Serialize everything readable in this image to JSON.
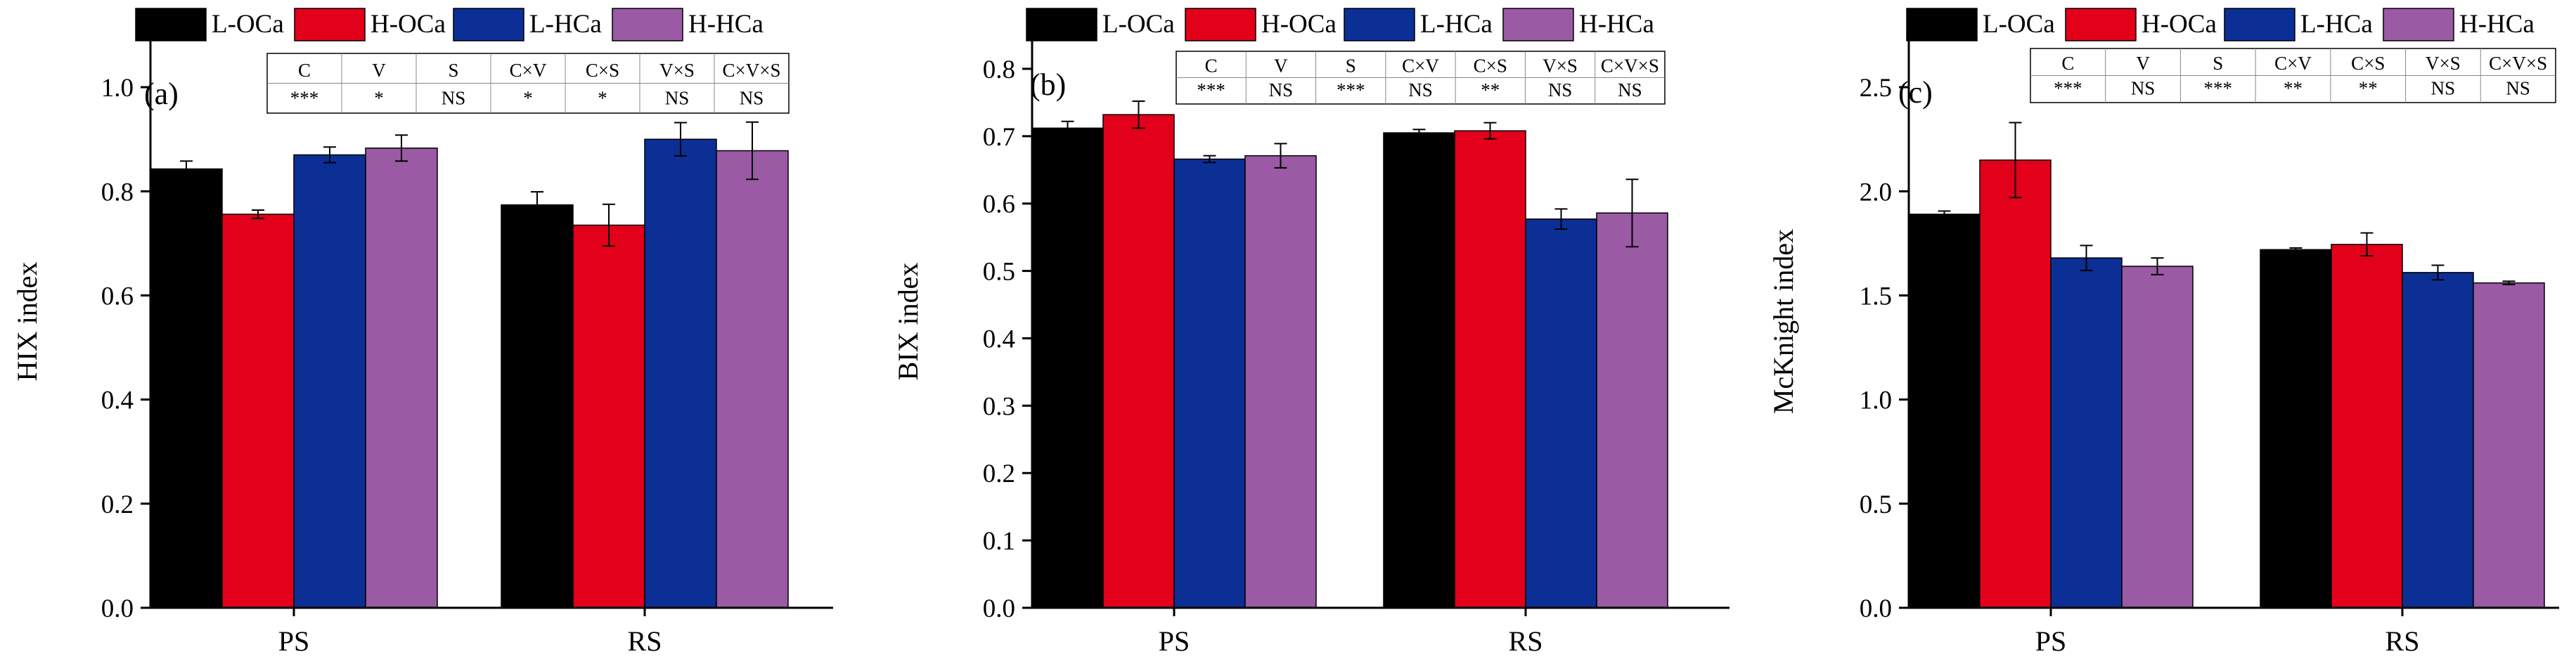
{
  "legend_labels": [
    "L-OCa",
    "H-OCa",
    "L-HCa",
    "H-HCa"
  ],
  "colors": [
    "#000000",
    "#e3001a",
    "#0c2f96",
    "#9a5aa4"
  ],
  "chart_data": [
    {
      "type": "bar",
      "panel_label": "(a)",
      "ylabel": "HIX index",
      "categories": [
        "PS",
        "RS"
      ],
      "ylim": [
        0,
        1.1
      ],
      "yticks": [
        "0.0",
        "0.2",
        "0.4",
        "0.6",
        "0.8",
        "1.0"
      ],
      "ytick_values": [
        0,
        0.2,
        0.4,
        0.6,
        0.8,
        1.0
      ],
      "series": [
        {
          "name": "L-OCa",
          "values": [
            0.843,
            0.774
          ],
          "errors": [
            0.015,
            0.025
          ]
        },
        {
          "name": "H-OCa",
          "values": [
            0.756,
            0.735
          ],
          "errors": [
            0.008,
            0.04
          ]
        },
        {
          "name": "L-HCa",
          "values": [
            0.87,
            0.9
          ],
          "errors": [
            0.015,
            0.032
          ]
        },
        {
          "name": "H-HCa",
          "values": [
            0.883,
            0.878
          ],
          "errors": [
            0.025,
            0.055
          ]
        }
      ],
      "stats_table": {
        "headers": [
          "C",
          "V",
          "S",
          "C×V",
          "C×S",
          "V×S",
          "C×V×S"
        ],
        "values": [
          "***",
          "*",
          "NS",
          "*",
          "*",
          "NS",
          "NS"
        ]
      }
    },
    {
      "type": "bar",
      "panel_label": "(b)",
      "ylabel": "BIX index",
      "categories": [
        "PS",
        "RS"
      ],
      "ylim": [
        0,
        0.85
      ],
      "yticks": [
        "0.0",
        "0.1",
        "0.2",
        "0.3",
        "0.4",
        "0.5",
        "0.6",
        "0.7",
        "0.8"
      ],
      "ytick_values": [
        0,
        0.1,
        0.2,
        0.3,
        0.4,
        0.5,
        0.6,
        0.7,
        0.8
      ],
      "series": [
        {
          "name": "L-OCa",
          "values": [
            0.712,
            0.705
          ],
          "errors": [
            0.01,
            0.005
          ]
        },
        {
          "name": "H-OCa",
          "values": [
            0.732,
            0.708
          ],
          "errors": [
            0.02,
            0.012
          ]
        },
        {
          "name": "L-HCa",
          "values": [
            0.666,
            0.577
          ],
          "errors": [
            0.005,
            0.015
          ]
        },
        {
          "name": "H-HCa",
          "values": [
            0.671,
            0.586
          ],
          "errors": [
            0.018,
            0.05
          ]
        }
      ],
      "stats_table": {
        "headers": [
          "C",
          "V",
          "S",
          "C×V",
          "C×S",
          "V×S",
          "C×V×S"
        ],
        "values": [
          "***",
          "NS",
          "***",
          "NS",
          "**",
          "NS",
          "NS"
        ]
      }
    },
    {
      "type": "bar",
      "panel_label": "(c)",
      "ylabel": "McKnight index",
      "categories": [
        "PS",
        "RS"
      ],
      "ylim": [
        0,
        2.75
      ],
      "yticks": [
        "0.0",
        "0.5",
        "1.0",
        "1.5",
        "2.0",
        "2.5"
      ],
      "ytick_values": [
        0,
        0.5,
        1.0,
        1.5,
        2.0,
        2.5
      ],
      "series": [
        {
          "name": "L-OCa",
          "values": [
            1.89,
            1.72
          ],
          "errors": [
            0.015,
            0.008
          ]
        },
        {
          "name": "H-OCa",
          "values": [
            2.15,
            1.745
          ],
          "errors": [
            0.18,
            0.055
          ]
        },
        {
          "name": "L-HCa",
          "values": [
            1.68,
            1.61
          ],
          "errors": [
            0.06,
            0.035
          ]
        },
        {
          "name": "H-HCa",
          "values": [
            1.64,
            1.56
          ],
          "errors": [
            0.04,
            0.008
          ]
        }
      ],
      "stats_table": {
        "headers": [
          "C",
          "V",
          "S",
          "C×V",
          "C×S",
          "V×S",
          "C×V×S"
        ],
        "values": [
          "***",
          "NS",
          "***",
          "**",
          "**",
          "NS",
          "NS"
        ]
      }
    }
  ]
}
